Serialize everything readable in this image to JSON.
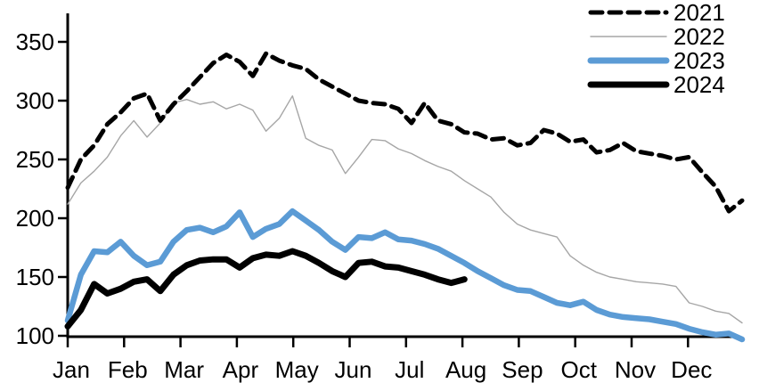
{
  "chart_data": {
    "type": "line",
    "title": "",
    "xlabel": "",
    "ylabel": "",
    "grid": false,
    "legend_position": "top-right",
    "x_axis": {
      "tick_labels": [
        "Jan",
        "Feb",
        "Mar",
        "Apr",
        "May",
        "Jun",
        "Jul",
        "Aug",
        "Sep",
        "Oct",
        "Nov",
        "Dec"
      ],
      "unit": "weekly points across one year"
    },
    "y_axis": {
      "ticks": [
        100,
        150,
        200,
        250,
        300,
        350
      ],
      "range": [
        100,
        358
      ]
    },
    "series": [
      {
        "name": "2021",
        "style": "dashed",
        "color": "#000000",
        "stroke_width": 5,
        "values": [
          226,
          250,
          262,
          280,
          290,
          302,
          306,
          283,
          297,
          308,
          320,
          332,
          339,
          333,
          321,
          340,
          334,
          330,
          327,
          318,
          312,
          306,
          300,
          298,
          297,
          293,
          281,
          298,
          283,
          280,
          273,
          272,
          267,
          268,
          262,
          264,
          275,
          272,
          265,
          267,
          256,
          258,
          264,
          257,
          255,
          253,
          250,
          252,
          239,
          227,
          206,
          215
        ]
      },
      {
        "name": "2022",
        "style": "solid",
        "color": "#A6A6A6",
        "stroke_width": 1.4,
        "values": [
          212,
          230,
          240,
          252,
          270,
          283,
          269,
          281,
          298,
          301,
          297,
          299,
          293,
          297,
          292,
          274,
          285,
          304,
          268,
          262,
          258,
          238,
          252,
          267,
          266,
          259,
          255,
          249,
          244,
          240,
          232,
          225,
          218,
          205,
          195,
          190,
          187,
          184,
          168,
          160,
          154,
          150,
          148,
          146,
          145,
          144,
          142,
          128,
          125,
          121,
          119,
          111
        ]
      },
      {
        "name": "2023",
        "style": "solid",
        "color": "#5B9BD5",
        "stroke_width": 6.5,
        "values": [
          113,
          152,
          172,
          171,
          180,
          168,
          160,
          163,
          180,
          190,
          192,
          188,
          193,
          205,
          184,
          191,
          195,
          206,
          198,
          190,
          180,
          173,
          184,
          183,
          188,
          182,
          181,
          178,
          174,
          168,
          162,
          155,
          149,
          143,
          139,
          138,
          133,
          128,
          126,
          129,
          122,
          118,
          116,
          115,
          114,
          112,
          110,
          106,
          103,
          101,
          102,
          97
        ]
      },
      {
        "name": "2024",
        "style": "solid",
        "color": "#000000",
        "stroke_width": 7,
        "values": [
          108,
          122,
          144,
          136,
          140,
          146,
          148,
          138,
          152,
          160,
          164,
          165,
          165,
          158,
          166,
          169,
          168,
          172,
          168,
          162,
          155,
          150,
          162,
          163,
          159,
          158,
          155,
          152,
          148,
          145,
          148
        ]
      }
    ]
  },
  "legend": {
    "entries": [
      {
        "label": "2021"
      },
      {
        "label": "2022"
      },
      {
        "label": "2023"
      },
      {
        "label": "2024"
      }
    ]
  }
}
